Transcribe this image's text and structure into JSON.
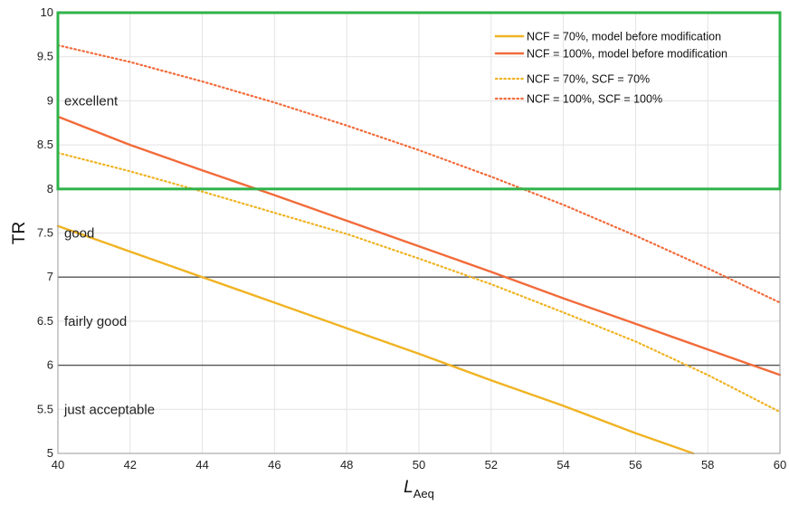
{
  "chart_data": {
    "type": "line",
    "xlabel": "L",
    "xlabel_sub": "Aeq",
    "ylabel": "TR",
    "xlim": [
      40,
      60
    ],
    "ylim": [
      5,
      10
    ],
    "x_ticks": [
      40,
      42,
      44,
      46,
      48,
      50,
      52,
      54,
      56,
      58,
      60
    ],
    "y_ticks": [
      5,
      5.5,
      6,
      6.5,
      7,
      7.5,
      8,
      8.5,
      9,
      9.5,
      10
    ],
    "y_tick_labels": [
      "5",
      "5.5",
      "6",
      "6.5",
      "7",
      "7.5",
      "8",
      "8.5",
      "9",
      "9.5",
      "10"
    ],
    "grid": true,
    "legend_position": "top-right",
    "colors": {
      "yellow": "#f0b323",
      "orange": "#f26b3a",
      "zone_box": "#2fb34a",
      "threshold": "#555555"
    },
    "thresholds": [
      6,
      7
    ],
    "highlight_box": {
      "y_from": 8,
      "y_to": 10,
      "color": "#2fb34a"
    },
    "zone_labels": [
      {
        "text": "excellent",
        "y": 9.0
      },
      {
        "text": "good",
        "y": 7.5
      },
      {
        "text": "fairly good",
        "y": 6.5
      },
      {
        "text": "just acceptable",
        "y": 5.5
      }
    ],
    "series": [
      {
        "name": "NCF = 70%, model before modification",
        "color": "#f0b323",
        "style": "solid",
        "x": [
          40,
          42,
          44,
          46,
          48,
          50,
          52,
          54,
          56,
          57.6
        ],
        "y": [
          7.58,
          7.29,
          7.0,
          6.71,
          6.42,
          6.13,
          5.83,
          5.54,
          5.23,
          5.0
        ]
      },
      {
        "name": "NCF = 100%, model before modification",
        "color": "#f26b3a",
        "style": "solid",
        "x": [
          40,
          42,
          44,
          46,
          48,
          50,
          52,
          54,
          56,
          58,
          60
        ],
        "y": [
          8.82,
          8.5,
          8.21,
          7.93,
          7.64,
          7.35,
          7.06,
          6.76,
          6.47,
          6.18,
          5.89
        ]
      },
      {
        "name": "NCF = 70%, SCF = 70%",
        "color": "#f0b323",
        "style": "dotted",
        "x": [
          40,
          42,
          44,
          46,
          48,
          50,
          52,
          54,
          56,
          58,
          60
        ],
        "y": [
          8.41,
          8.2,
          7.97,
          7.73,
          7.49,
          7.21,
          6.92,
          6.6,
          6.27,
          5.89,
          5.47
        ]
      },
      {
        "name": "NCF = 100%, SCF = 100%",
        "color": "#f26b3a",
        "style": "dotted",
        "x": [
          40,
          42,
          44,
          46,
          48,
          50,
          52,
          54,
          56,
          58,
          60
        ],
        "y": [
          9.63,
          9.44,
          9.22,
          8.98,
          8.72,
          8.44,
          8.14,
          7.82,
          7.47,
          7.1,
          6.71
        ]
      }
    ]
  }
}
